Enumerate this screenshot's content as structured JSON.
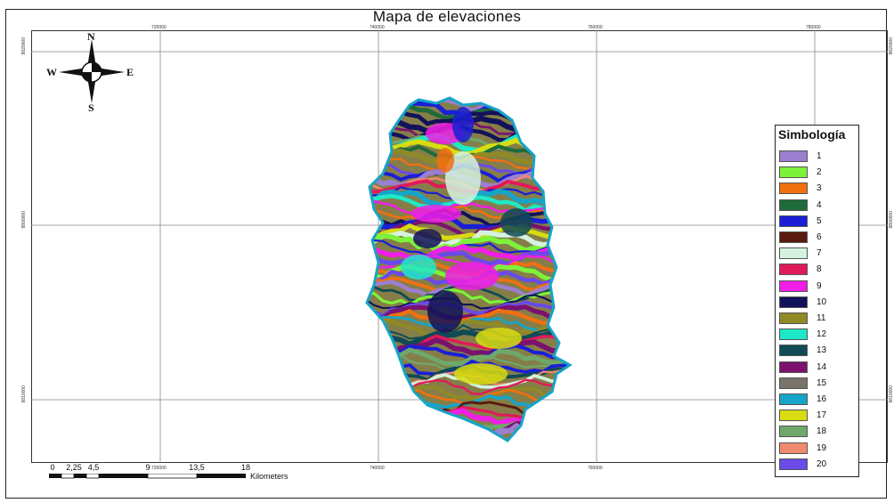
{
  "title": "Mapa de elevaciones",
  "coordinates": {
    "top": [
      "720000",
      "740000",
      "760000",
      "780000"
    ],
    "bottom": [
      "720000",
      "740000",
      "760000",
      "780000"
    ],
    "left": [
      "9820000",
      "9800000",
      "9810000"
    ],
    "right": [
      "9820000",
      "9800000",
      "9810000"
    ]
  },
  "compass": {
    "north": "N",
    "south": "S",
    "east": "E",
    "west": "W",
    "icon": "compass-rose-icon"
  },
  "legend": {
    "title": "Simbología",
    "items": [
      {
        "label": "1",
        "color": "#9b7fcf"
      },
      {
        "label": "2",
        "color": "#7ef23a"
      },
      {
        "label": "3",
        "color": "#f07010"
      },
      {
        "label": "4",
        "color": "#1f6b3a"
      },
      {
        "label": "5",
        "color": "#1a1fd6"
      },
      {
        "label": "6",
        "color": "#5a1a10"
      },
      {
        "label": "7",
        "color": "#d5f2df"
      },
      {
        "label": "8",
        "color": "#e01a5a"
      },
      {
        "label": "9",
        "color": "#f01ee6"
      },
      {
        "label": "10",
        "color": "#12125a"
      },
      {
        "label": "11",
        "color": "#8f8a26"
      },
      {
        "label": "12",
        "color": "#1ee8c8"
      },
      {
        "label": "13",
        "color": "#0f4a55"
      },
      {
        "label": "14",
        "color": "#7a126e"
      },
      {
        "label": "15",
        "color": "#7a736a"
      },
      {
        "label": "16",
        "color": "#16a4c8"
      },
      {
        "label": "17",
        "color": "#d8dc10"
      },
      {
        "label": "18",
        "color": "#6ea86a"
      },
      {
        "label": "19",
        "color": "#f08a6e"
      },
      {
        "label": "20",
        "color": "#6a4ae8"
      }
    ]
  },
  "scale": {
    "ticks": [
      "0",
      "2,25",
      "4,5",
      "9",
      "13,5",
      "18"
    ],
    "unit": "Kilometers"
  }
}
